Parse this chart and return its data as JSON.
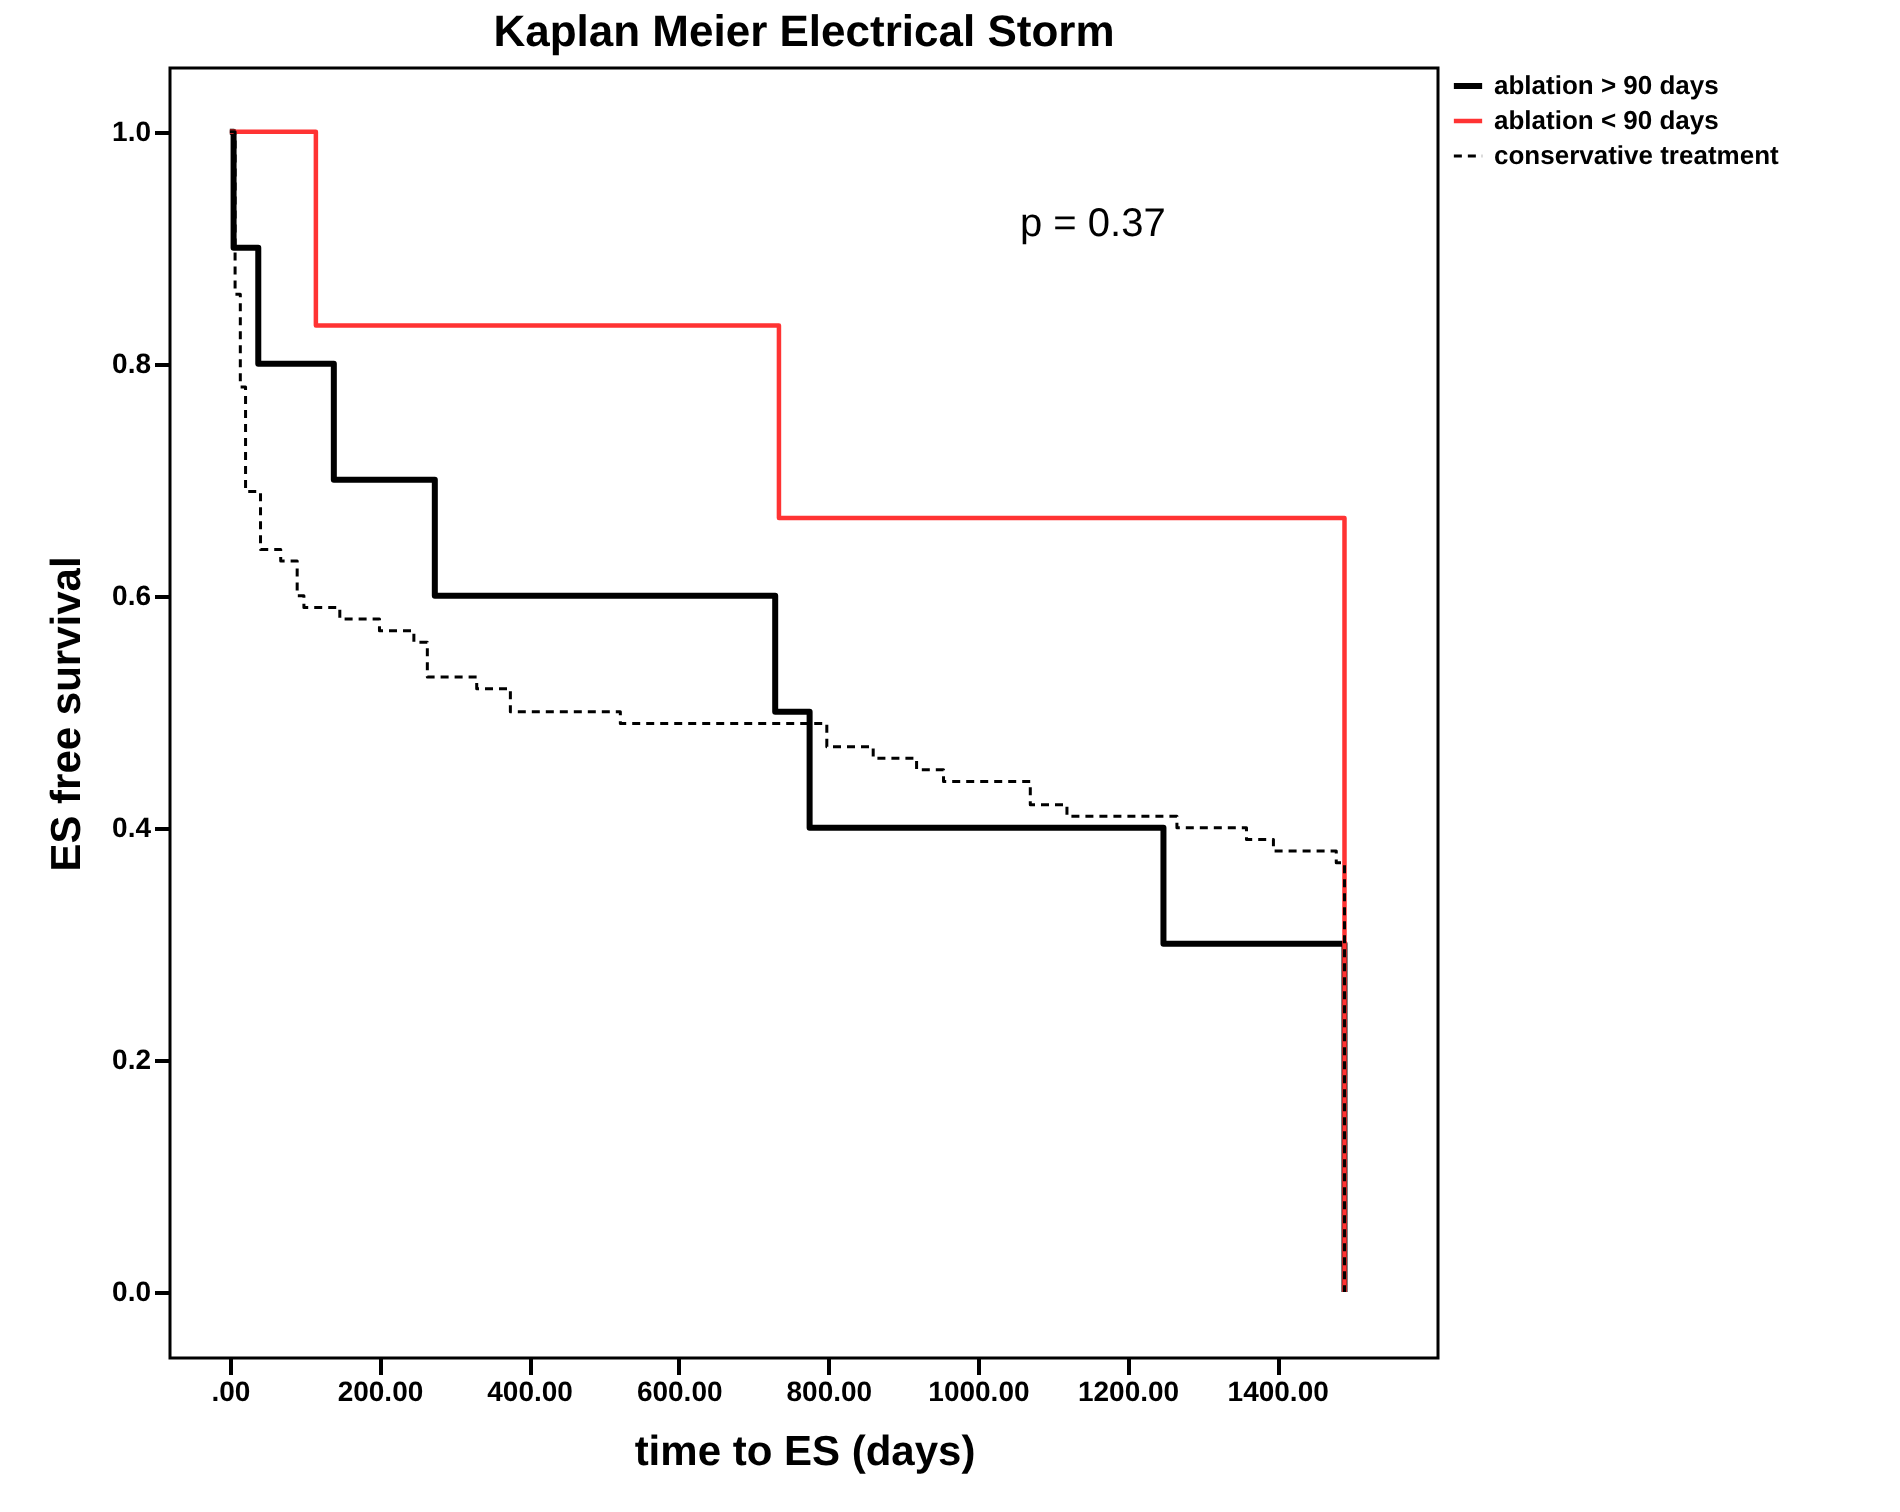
{
  "chart_data": {
    "type": "step",
    "title": "Kaplan Meier Electrical Storm",
    "xlabel": "time to ES (days)",
    "ylabel": "ES free survival",
    "xlim": [
      -80,
      1615
    ],
    "ylim": [
      -0.057,
      1.055
    ],
    "xticks": [
      {
        "value": 0,
        "label": ".00"
      },
      {
        "value": 200,
        "label": "200.00"
      },
      {
        "value": 400,
        "label": "400.00"
      },
      {
        "value": 600,
        "label": "600.00"
      },
      {
        "value": 800,
        "label": "800.00"
      },
      {
        "value": 1000,
        "label": "1000.00"
      },
      {
        "value": 1200,
        "label": "1200.00"
      },
      {
        "value": 1400,
        "label": "1400.00"
      }
    ],
    "yticks": [
      {
        "value": 0,
        "label": "0.0"
      },
      {
        "value": 0.2,
        "label": "0.2"
      },
      {
        "value": 0.4,
        "label": "0.4"
      },
      {
        "value": 0.6,
        "label": "0.6"
      },
      {
        "value": 0.8,
        "label": "0.8"
      },
      {
        "value": 1,
        "label": "1.0"
      }
    ],
    "grid": false,
    "legend": "top right",
    "marker": "none",
    "annotations": [
      "p = 0.37"
    ],
    "series": [
      {
        "name": "ablation > 90 days",
        "color": "#000000",
        "line_style": "solid",
        "x": [
          0,
          5,
          38,
          139,
          274,
          729,
          775,
          1248,
          1490
        ],
        "values": [
          1.0,
          0.9,
          0.8,
          0.7,
          0.6,
          0.5,
          0.4,
          0.3,
          0
        ]
      },
      {
        "name": "ablation < 90 days",
        "color": "#ff3333",
        "line_style": "solid",
        "x": [
          0,
          115,
          734,
          1490
        ],
        "values": [
          1.0,
          0.833,
          0.667,
          0
        ]
      },
      {
        "name": "conservative treatment",
        "color": "#000000",
        "line_style": "dashed",
        "x": [
          0,
          7,
          14,
          21,
          41,
          68,
          90,
          99,
          147,
          200,
          246,
          264,
          330,
          375,
          522,
          798,
          860,
          918,
          954,
          1070,
          1119,
          1266,
          1359,
          1395,
          1479,
          1490
        ],
        "values": [
          1.0,
          0.86,
          0.78,
          0.69,
          0.64,
          0.63,
          0.6,
          0.59,
          0.58,
          0.57,
          0.56,
          0.53,
          0.52,
          0.5,
          0.49,
          0.47,
          0.46,
          0.45,
          0.44,
          0.42,
          0.41,
          0.4,
          0.39,
          0.38,
          0.37,
          0
        ]
      }
    ]
  }
}
